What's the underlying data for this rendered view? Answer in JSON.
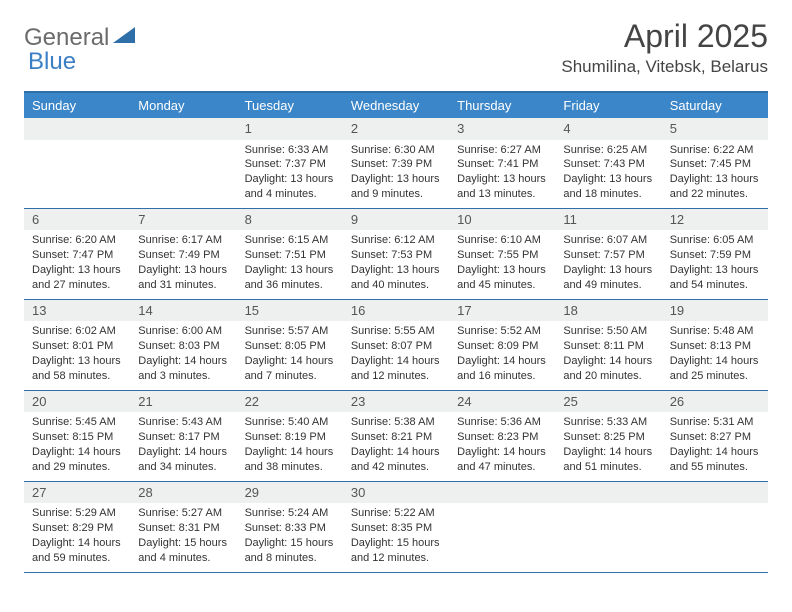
{
  "colors": {
    "header_bg": "#3b86c8",
    "border": "#2f6fa9",
    "daynum_bg": "#eef0f0",
    "text": "#333333",
    "title": "#444444",
    "logo_gray": "#6b6b6b",
    "logo_blue": "#3b7fc4"
  },
  "logo": {
    "part1": "General",
    "part2": "Blue"
  },
  "title": "April 2025",
  "location": "Shumilina, Vitebsk, Belarus",
  "day_labels": [
    "Sunday",
    "Monday",
    "Tuesday",
    "Wednesday",
    "Thursday",
    "Friday",
    "Saturday"
  ],
  "layout": {
    "leading_blanks": 2,
    "days_in_month": 30
  },
  "days": {
    "1": {
      "sunrise": "Sunrise: 6:33 AM",
      "sunset": "Sunset: 7:37 PM",
      "dl1": "Daylight: 13 hours",
      "dl2": "and 4 minutes."
    },
    "2": {
      "sunrise": "Sunrise: 6:30 AM",
      "sunset": "Sunset: 7:39 PM",
      "dl1": "Daylight: 13 hours",
      "dl2": "and 9 minutes."
    },
    "3": {
      "sunrise": "Sunrise: 6:27 AM",
      "sunset": "Sunset: 7:41 PM",
      "dl1": "Daylight: 13 hours",
      "dl2": "and 13 minutes."
    },
    "4": {
      "sunrise": "Sunrise: 6:25 AM",
      "sunset": "Sunset: 7:43 PM",
      "dl1": "Daylight: 13 hours",
      "dl2": "and 18 minutes."
    },
    "5": {
      "sunrise": "Sunrise: 6:22 AM",
      "sunset": "Sunset: 7:45 PM",
      "dl1": "Daylight: 13 hours",
      "dl2": "and 22 minutes."
    },
    "6": {
      "sunrise": "Sunrise: 6:20 AM",
      "sunset": "Sunset: 7:47 PM",
      "dl1": "Daylight: 13 hours",
      "dl2": "and 27 minutes."
    },
    "7": {
      "sunrise": "Sunrise: 6:17 AM",
      "sunset": "Sunset: 7:49 PM",
      "dl1": "Daylight: 13 hours",
      "dl2": "and 31 minutes."
    },
    "8": {
      "sunrise": "Sunrise: 6:15 AM",
      "sunset": "Sunset: 7:51 PM",
      "dl1": "Daylight: 13 hours",
      "dl2": "and 36 minutes."
    },
    "9": {
      "sunrise": "Sunrise: 6:12 AM",
      "sunset": "Sunset: 7:53 PM",
      "dl1": "Daylight: 13 hours",
      "dl2": "and 40 minutes."
    },
    "10": {
      "sunrise": "Sunrise: 6:10 AM",
      "sunset": "Sunset: 7:55 PM",
      "dl1": "Daylight: 13 hours",
      "dl2": "and 45 minutes."
    },
    "11": {
      "sunrise": "Sunrise: 6:07 AM",
      "sunset": "Sunset: 7:57 PM",
      "dl1": "Daylight: 13 hours",
      "dl2": "and 49 minutes."
    },
    "12": {
      "sunrise": "Sunrise: 6:05 AM",
      "sunset": "Sunset: 7:59 PM",
      "dl1": "Daylight: 13 hours",
      "dl2": "and 54 minutes."
    },
    "13": {
      "sunrise": "Sunrise: 6:02 AM",
      "sunset": "Sunset: 8:01 PM",
      "dl1": "Daylight: 13 hours",
      "dl2": "and 58 minutes."
    },
    "14": {
      "sunrise": "Sunrise: 6:00 AM",
      "sunset": "Sunset: 8:03 PM",
      "dl1": "Daylight: 14 hours",
      "dl2": "and 3 minutes."
    },
    "15": {
      "sunrise": "Sunrise: 5:57 AM",
      "sunset": "Sunset: 8:05 PM",
      "dl1": "Daylight: 14 hours",
      "dl2": "and 7 minutes."
    },
    "16": {
      "sunrise": "Sunrise: 5:55 AM",
      "sunset": "Sunset: 8:07 PM",
      "dl1": "Daylight: 14 hours",
      "dl2": "and 12 minutes."
    },
    "17": {
      "sunrise": "Sunrise: 5:52 AM",
      "sunset": "Sunset: 8:09 PM",
      "dl1": "Daylight: 14 hours",
      "dl2": "and 16 minutes."
    },
    "18": {
      "sunrise": "Sunrise: 5:50 AM",
      "sunset": "Sunset: 8:11 PM",
      "dl1": "Daylight: 14 hours",
      "dl2": "and 20 minutes."
    },
    "19": {
      "sunrise": "Sunrise: 5:48 AM",
      "sunset": "Sunset: 8:13 PM",
      "dl1": "Daylight: 14 hours",
      "dl2": "and 25 minutes."
    },
    "20": {
      "sunrise": "Sunrise: 5:45 AM",
      "sunset": "Sunset: 8:15 PM",
      "dl1": "Daylight: 14 hours",
      "dl2": "and 29 minutes."
    },
    "21": {
      "sunrise": "Sunrise: 5:43 AM",
      "sunset": "Sunset: 8:17 PM",
      "dl1": "Daylight: 14 hours",
      "dl2": "and 34 minutes."
    },
    "22": {
      "sunrise": "Sunrise: 5:40 AM",
      "sunset": "Sunset: 8:19 PM",
      "dl1": "Daylight: 14 hours",
      "dl2": "and 38 minutes."
    },
    "23": {
      "sunrise": "Sunrise: 5:38 AM",
      "sunset": "Sunset: 8:21 PM",
      "dl1": "Daylight: 14 hours",
      "dl2": "and 42 minutes."
    },
    "24": {
      "sunrise": "Sunrise: 5:36 AM",
      "sunset": "Sunset: 8:23 PM",
      "dl1": "Daylight: 14 hours",
      "dl2": "and 47 minutes."
    },
    "25": {
      "sunrise": "Sunrise: 5:33 AM",
      "sunset": "Sunset: 8:25 PM",
      "dl1": "Daylight: 14 hours",
      "dl2": "and 51 minutes."
    },
    "26": {
      "sunrise": "Sunrise: 5:31 AM",
      "sunset": "Sunset: 8:27 PM",
      "dl1": "Daylight: 14 hours",
      "dl2": "and 55 minutes."
    },
    "27": {
      "sunrise": "Sunrise: 5:29 AM",
      "sunset": "Sunset: 8:29 PM",
      "dl1": "Daylight: 14 hours",
      "dl2": "and 59 minutes."
    },
    "28": {
      "sunrise": "Sunrise: 5:27 AM",
      "sunset": "Sunset: 8:31 PM",
      "dl1": "Daylight: 15 hours",
      "dl2": "and 4 minutes."
    },
    "29": {
      "sunrise": "Sunrise: 5:24 AM",
      "sunset": "Sunset: 8:33 PM",
      "dl1": "Daylight: 15 hours",
      "dl2": "and 8 minutes."
    },
    "30": {
      "sunrise": "Sunrise: 5:22 AM",
      "sunset": "Sunset: 8:35 PM",
      "dl1": "Daylight: 15 hours",
      "dl2": "and 12 minutes."
    }
  }
}
